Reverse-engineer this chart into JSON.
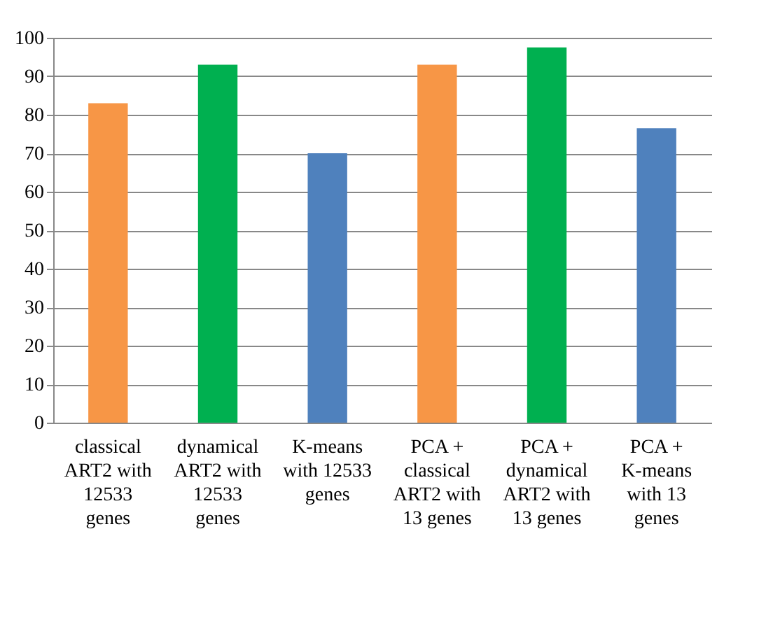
{
  "chart_data": {
    "type": "bar",
    "categories": [
      "classical ART2 with 12533 genes",
      "dynamical ART2 with 12533 genes",
      "K-means with 12533 genes",
      "PCA + classical ART2 with 13 genes",
      "PCA + dynamical ART2 with 13 genes",
      "PCA + K-means with 13 genes"
    ],
    "values": [
      83,
      93,
      70,
      93,
      97.5,
      76.5
    ],
    "colors": [
      "#f79646",
      "#00b050",
      "#4f81bd",
      "#f79646",
      "#00b050",
      "#4f81bd"
    ],
    "ylim": [
      0,
      100
    ],
    "yticks": [
      0,
      10,
      20,
      30,
      40,
      50,
      60,
      70,
      80,
      90,
      100
    ],
    "grid": "y"
  }
}
